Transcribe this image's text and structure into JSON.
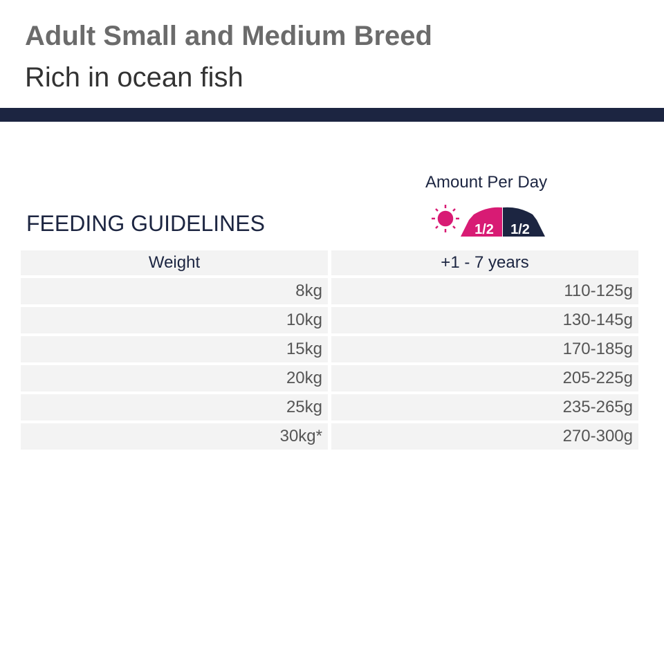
{
  "header": {
    "title": "Adult Small and Medium Breed",
    "subtitle": "Rich in ocean fish"
  },
  "feeding": {
    "heading": "FEEDING GUIDELINES",
    "amount_label": "Amount Per Day",
    "icons": {
      "day": "sun-icon",
      "night": "moon-icon",
      "left_half": "1/2",
      "right_half": "1/2"
    },
    "colors": {
      "accent": "#d81b74",
      "navy": "#1c2541"
    },
    "columns": [
      "Weight",
      "+1 - 7 years"
    ],
    "rows": [
      [
        "8kg",
        "110-125g"
      ],
      [
        "10kg",
        "130-145g"
      ],
      [
        "15kg",
        "170-185g"
      ],
      [
        "20kg",
        "205-225g"
      ],
      [
        "25kg",
        "235-265g"
      ],
      [
        "30kg*",
        "270-300g"
      ]
    ]
  }
}
